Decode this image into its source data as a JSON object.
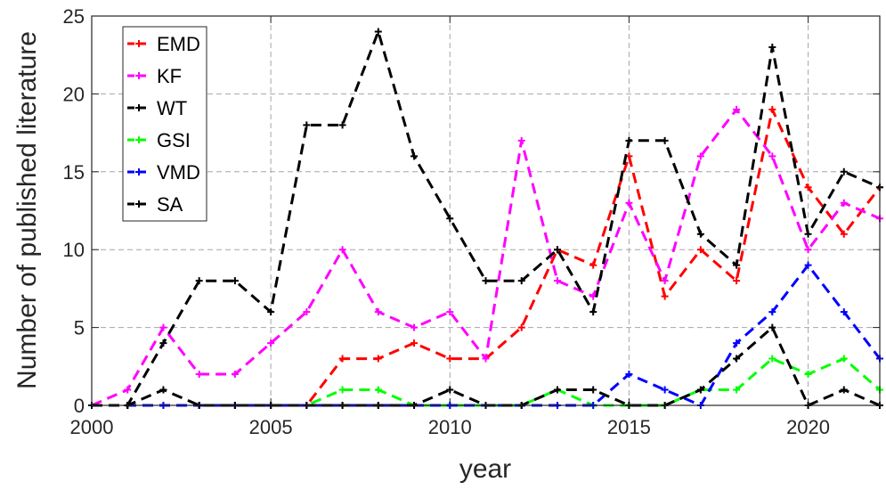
{
  "chart_data": {
    "type": "line",
    "xlabel": "year",
    "ylabel": "Number of published literature",
    "xlim": [
      2000,
      2022
    ],
    "ylim": [
      0,
      25
    ],
    "xticks": [
      "2000",
      "2005",
      "2010",
      "2015",
      "2020"
    ],
    "yticks": [
      "0",
      "5",
      "10",
      "15",
      "20",
      "25"
    ],
    "grid": true,
    "legend_position": "top-left",
    "x": [
      2000,
      2001,
      2002,
      2003,
      2004,
      2005,
      2006,
      2007,
      2008,
      2009,
      2010,
      2011,
      2012,
      2013,
      2014,
      2015,
      2016,
      2017,
      2018,
      2019,
      2020,
      2021,
      2022
    ],
    "series": [
      {
        "name": "EMD",
        "color": "#ff0000",
        "values": [
          0,
          0,
          0,
          0,
          0,
          0,
          0,
          3,
          3,
          4,
          3,
          3,
          5,
          10,
          9,
          16,
          7,
          10,
          8,
          19,
          14,
          11,
          14
        ]
      },
      {
        "name": "KF",
        "color": "#ff00ff",
        "values": [
          0,
          1,
          5,
          2,
          2,
          4,
          6,
          10,
          6,
          5,
          6,
          3,
          17,
          8,
          7,
          13,
          8,
          16,
          19,
          16,
          10,
          13,
          12
        ]
      },
      {
        "name": "WT",
        "color": "#000000",
        "values": [
          0,
          0,
          4,
          8,
          8,
          6,
          18,
          18,
          24,
          16,
          12,
          8,
          8,
          10,
          6,
          17,
          17,
          11,
          9,
          23,
          11,
          15,
          14
        ]
      },
      {
        "name": "GSI",
        "color": "#00ff00",
        "values": [
          0,
          0,
          0,
          0,
          0,
          0,
          0,
          1,
          1,
          0,
          0,
          0,
          0,
          1,
          0,
          0,
          0,
          1,
          1,
          3,
          2,
          3,
          1
        ]
      },
      {
        "name": "VMD",
        "color": "#0000ff",
        "values": [
          0,
          0,
          0,
          0,
          0,
          0,
          0,
          0,
          0,
          0,
          0,
          0,
          0,
          0,
          0,
          2,
          1,
          0,
          4,
          6,
          9,
          6,
          3
        ]
      },
      {
        "name": "SA",
        "color": "#000000",
        "values": [
          0,
          0,
          1,
          0,
          0,
          0,
          0,
          0,
          0,
          0,
          1,
          0,
          0,
          1,
          1,
          0,
          0,
          1,
          3,
          5,
          0,
          1,
          0
        ]
      }
    ]
  }
}
